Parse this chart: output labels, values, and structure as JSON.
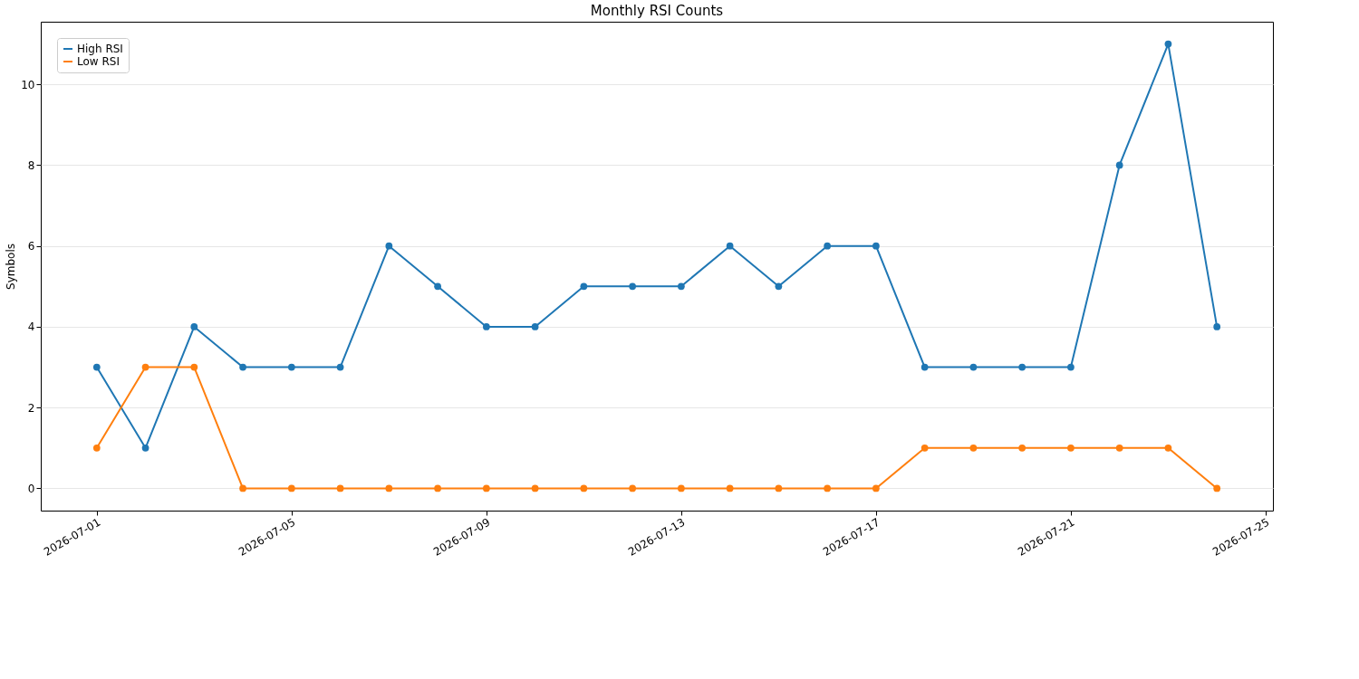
{
  "chart_data": {
    "type": "line",
    "title": "Monthly RSI Counts",
    "ylabel": "Symbols",
    "x": [
      "2026-07-01",
      "2026-07-02",
      "2026-07-03",
      "2026-07-04",
      "2026-07-05",
      "2026-07-06",
      "2026-07-07",
      "2026-07-08",
      "2026-07-09",
      "2026-07-10",
      "2026-07-11",
      "2026-07-12",
      "2026-07-13",
      "2026-07-14",
      "2026-07-15",
      "2026-07-16",
      "2026-07-17",
      "2026-07-18",
      "2026-07-19",
      "2026-07-20",
      "2026-07-21",
      "2026-07-22",
      "2026-07-23",
      "2026-07-24"
    ],
    "series": [
      {
        "name": "High RSI",
        "color": "#1f77b4",
        "values": [
          3,
          1,
          4,
          3,
          3,
          3,
          6,
          5,
          4,
          4,
          5,
          5,
          5,
          6,
          5,
          6,
          6,
          3,
          3,
          3,
          3,
          8,
          11,
          4
        ]
      },
      {
        "name": "Low RSI",
        "color": "#ff7f0e",
        "values": [
          1,
          3,
          3,
          0,
          0,
          0,
          0,
          0,
          0,
          0,
          0,
          0,
          0,
          0,
          0,
          0,
          0,
          1,
          1,
          1,
          1,
          1,
          1,
          0
        ]
      }
    ],
    "xlim": [
      "2026-06-29T20:24",
      "2026-07-25T03:36"
    ],
    "xticks": [
      "2026-07-01",
      "2026-07-05",
      "2026-07-09",
      "2026-07-13",
      "2026-07-17",
      "2026-07-21",
      "2026-07-25"
    ],
    "ylim": [
      -0.55,
      11.55
    ],
    "yticks": [
      0,
      2,
      4,
      6,
      8,
      10
    ],
    "grid": "y",
    "legend": "top left",
    "marker": "circle",
    "line_style": "solid"
  }
}
